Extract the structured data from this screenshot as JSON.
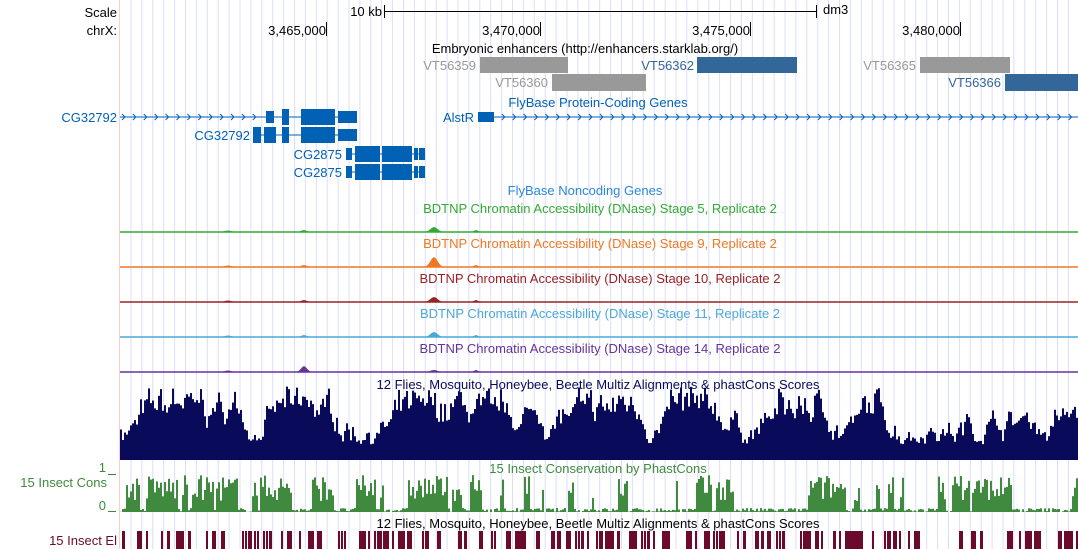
{
  "ruler": {
    "scale_label": "Scale",
    "scale_bar_label": "10 kb",
    "assembly": "dm3",
    "chrom_label": "chrX:",
    "ticks": [
      "3,465,000",
      "3,470,000",
      "3,475,000",
      "3,480,000"
    ]
  },
  "enhancers": {
    "title": "Embryonic enhancers (http://enhancers.starklab.org/)",
    "items": [
      {
        "name": "VT56359",
        "color": "#999999"
      },
      {
        "name": "VT56360",
        "color": "#999999"
      },
      {
        "name": "VT56362",
        "color": "#336699"
      },
      {
        "name": "VT56365",
        "color": "#999999"
      },
      {
        "name": "VT56366",
        "color": "#336699"
      }
    ]
  },
  "protein_genes": {
    "title": "FlyBase Protein-Coding Genes",
    "color": "#0061b5",
    "genes": [
      "CG32792",
      "CG32792",
      "CG2875",
      "CG2875",
      "AlstR"
    ]
  },
  "noncoding_genes": {
    "title": "FlyBase Noncoding Genes",
    "color": "#2a88d8"
  },
  "dnase_tracks": [
    {
      "title": "BDTNP Chromatin Accessibility (DNase) Stage 5, Replicate 2",
      "color": "#33aa33"
    },
    {
      "title": "BDTNP Chromatin Accessibility (DNase) Stage 9, Replicate 2",
      "color": "#f07820"
    },
    {
      "title": "BDTNP Chromatin Accessibility (DNase) Stage 10, Replicate 2",
      "color": "#992222"
    },
    {
      "title": "BDTNP Chromatin Accessibility (DNase) Stage 11, Replicate 2",
      "color": "#4aa8d8"
    },
    {
      "title": "BDTNP Chromatin Accessibility (DNase) Stage 14, Replicate 2",
      "color": "#663399"
    }
  ],
  "multiz": {
    "title": "12 Flies, Mosquito, Honeybee, Beetle Multiz Alignments & phastCons Scores",
    "color": "#0a0a5a"
  },
  "phastcons": {
    "title": "15 Insect Conservation by PhastCons",
    "label": "15 Insect Cons",
    "ymax": "1",
    "ymin": "0",
    "color": "#3f8a3f"
  },
  "elements": {
    "title": "12 Flies, Mosquito, Honeybee, Beetle Multiz Alignments & phastCons Scores",
    "label": "15 Insect El",
    "color": "#6b0a2a"
  }
}
